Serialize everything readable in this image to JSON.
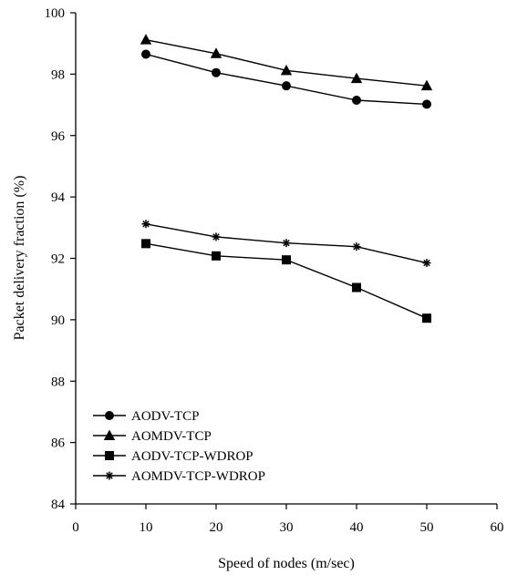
{
  "chart_data": {
    "type": "line",
    "xlabel": "Speed of nodes (m/sec)",
    "ylabel": "Packet delivery fraction (%)",
    "xlim": [
      0,
      60
    ],
    "ylim": [
      84,
      100
    ],
    "xticks": [
      0,
      10,
      20,
      30,
      40,
      50,
      60
    ],
    "yticks": [
      84,
      86,
      88,
      90,
      92,
      94,
      96,
      98,
      100
    ],
    "grid": false,
    "legend_position": "bottom-left",
    "series": [
      {
        "name": "AODV-TCP",
        "marker": "circle",
        "x": [
          10,
          20,
          30,
          40,
          50
        ],
        "values": [
          98.65,
          98.05,
          97.62,
          97.15,
          97.02
        ]
      },
      {
        "name": "AOMDV-TCP",
        "marker": "triangle",
        "x": [
          10,
          20,
          30,
          40,
          50
        ],
        "values": [
          99.12,
          98.67,
          98.12,
          97.86,
          97.62
        ]
      },
      {
        "name": "AODV-TCP-WDROP",
        "marker": "square",
        "x": [
          10,
          20,
          30,
          40,
          50
        ],
        "values": [
          92.48,
          92.08,
          91.95,
          91.05,
          90.05
        ]
      },
      {
        "name": "AOMDV-TCP-WDROP",
        "marker": "asterisk",
        "x": [
          10,
          20,
          30,
          40,
          50
        ],
        "values": [
          93.12,
          92.7,
          92.5,
          92.38,
          91.85
        ]
      }
    ]
  }
}
